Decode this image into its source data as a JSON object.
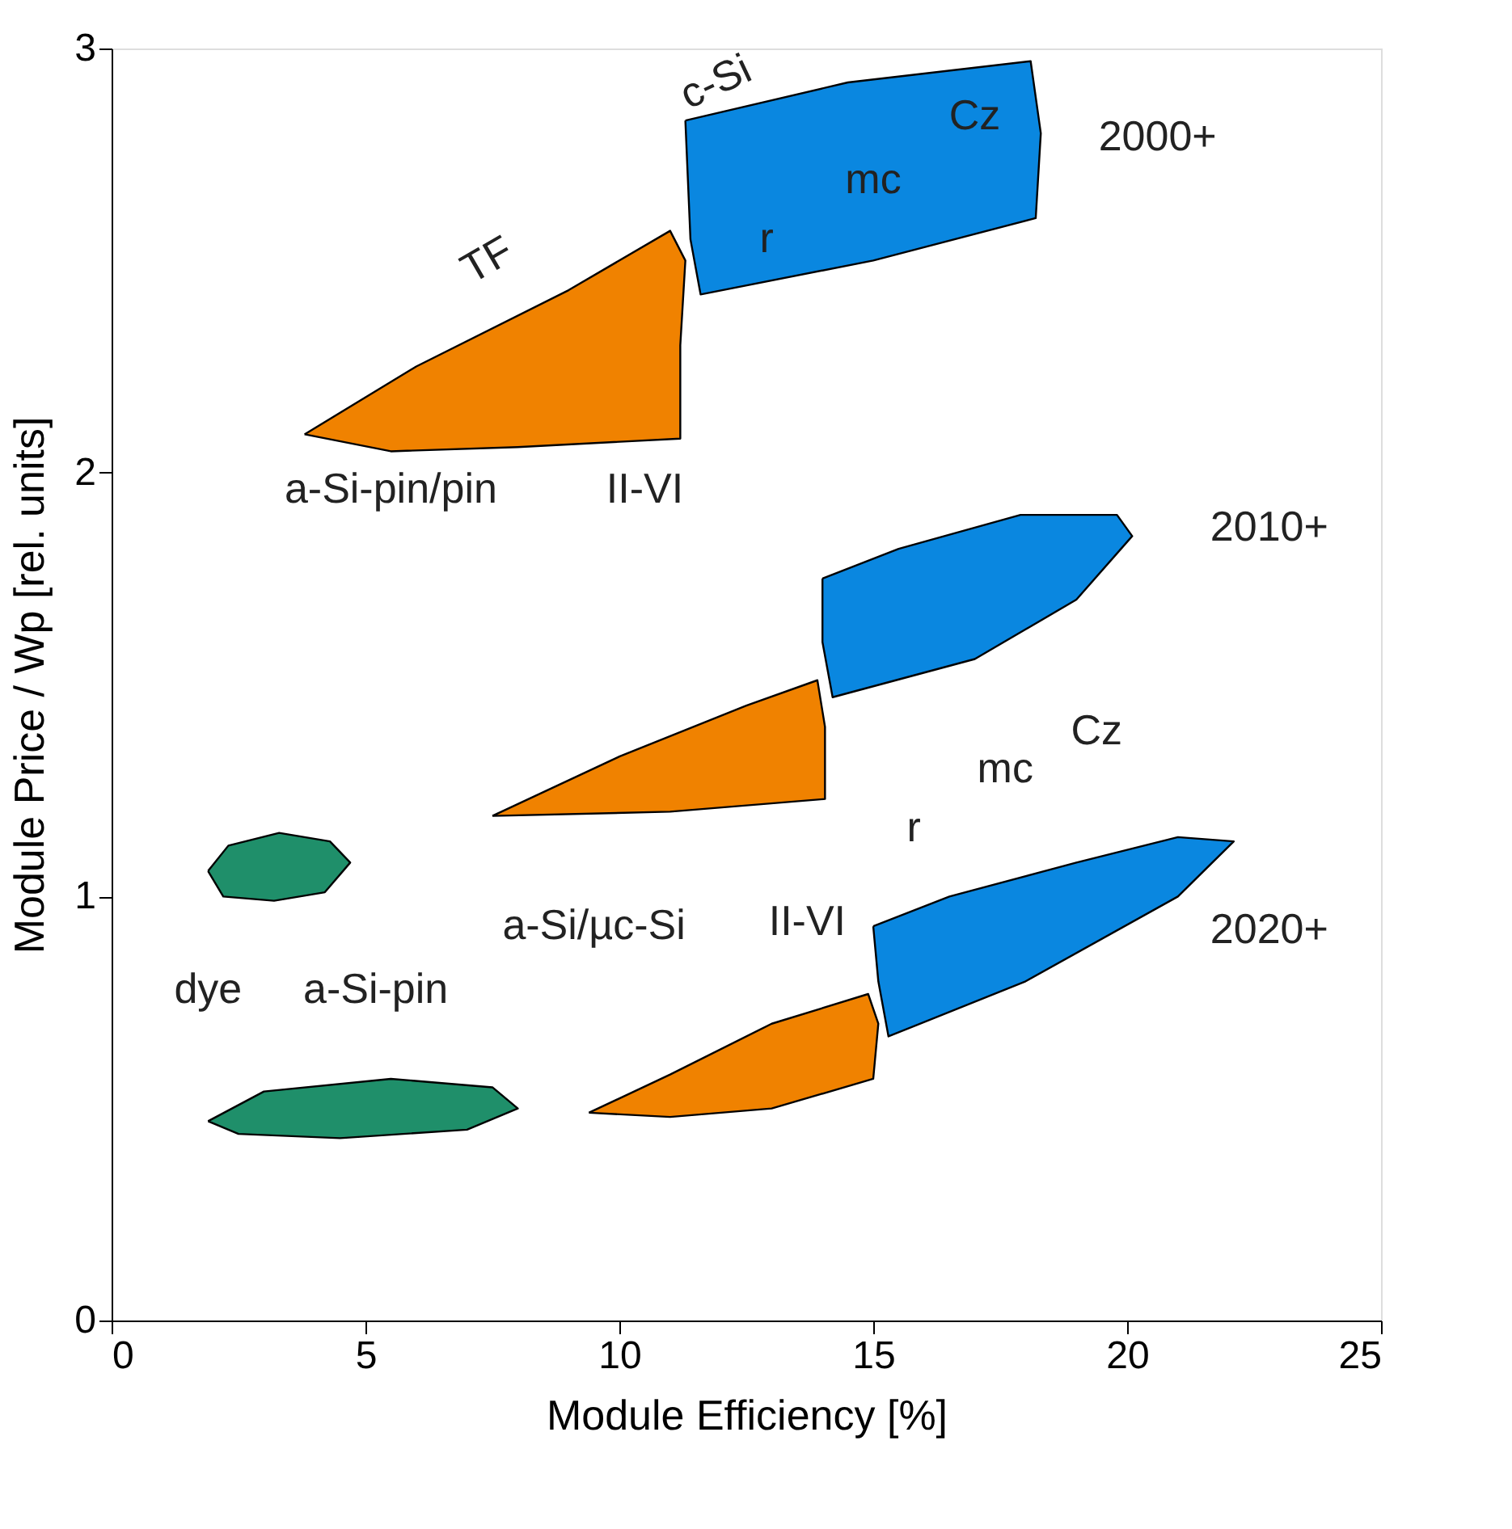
{
  "chart_data": {
    "type": "area",
    "xlabel": "Module Efficiency [%]",
    "ylabel": "Module Price / Wp [rel. units]",
    "xlim": [
      0,
      25
    ],
    "xticks": [
      0,
      5,
      10,
      15,
      20,
      25
    ],
    "ylim": [
      0,
      3
    ],
    "yticks": [
      0,
      1,
      2,
      3
    ],
    "grid": false,
    "series": [
      {
        "color": "#0a87e0",
        "x": [
          11.3,
          14.5,
          18.1,
          18.3,
          18.2,
          15,
          11.6,
          11.4,
          11.3
        ],
        "values": [
          2.83,
          2.92,
          2.97,
          2.8,
          2.6,
          2.5,
          2.42,
          2.55,
          2.83
        ]
      },
      {
        "color": "#f08200",
        "x": [
          3.8,
          6,
          9,
          11.0,
          11.3,
          11.2,
          11.2,
          8,
          5.5,
          3.8
        ],
        "values": [
          2.09,
          2.25,
          2.43,
          2.57,
          2.5,
          2.3,
          2.08,
          2.06,
          2.05,
          2.09
        ]
      },
      {
        "color": "#0a87e0",
        "x": [
          14,
          15.5,
          17.9,
          19.8,
          20.1,
          19,
          17,
          14.2,
          14,
          14
        ],
        "values": [
          1.75,
          1.82,
          1.9,
          1.9,
          1.85,
          1.7,
          1.56,
          1.47,
          1.6,
          1.75
        ]
      },
      {
        "color": "#f08200",
        "x": [
          7.5,
          10,
          12.5,
          13.9,
          14.05,
          14.05,
          11,
          7.5
        ],
        "values": [
          1.19,
          1.33,
          1.45,
          1.51,
          1.4,
          1.23,
          1.2,
          1.19
        ]
      },
      {
        "color": "#0a87e0",
        "x": [
          15,
          16.5,
          19,
          21,
          22.1,
          21,
          18,
          15.3,
          15.1,
          15
        ],
        "values": [
          0.93,
          1.0,
          1.08,
          1.14,
          1.13,
          1.0,
          0.8,
          0.67,
          0.8,
          0.93
        ]
      },
      {
        "color": "#f08200",
        "x": [
          9.4,
          11,
          13,
          14.9,
          15.1,
          15,
          13,
          11,
          9.4
        ],
        "values": [
          0.49,
          0.58,
          0.7,
          0.77,
          0.7,
          0.57,
          0.5,
          0.48,
          0.49
        ]
      },
      {
        "color": "#1f8f6a",
        "x": [
          1.9,
          2.3,
          3.3,
          4.3,
          4.7,
          4.2,
          3.2,
          2.2,
          1.9
        ],
        "values": [
          1.06,
          1.12,
          1.15,
          1.13,
          1.08,
          1.01,
          0.99,
          1.0,
          1.06
        ]
      },
      {
        "color": "#1f8f6a",
        "x": [
          1.9,
          3,
          5.5,
          7.5,
          8,
          7,
          4.5,
          2.5,
          1.9
        ],
        "values": [
          0.47,
          0.54,
          0.57,
          0.55,
          0.5,
          0.45,
          0.43,
          0.44,
          0.47
        ]
      }
    ],
    "annotations": [
      "c-Si",
      "Cz",
      "mc",
      "r",
      "2000+",
      "TF",
      "a-Si-pin/pin",
      "II-VI",
      "2010+",
      "Cz",
      "mc",
      "r",
      "a-Si/µc-Si",
      "II-VI",
      "2020+",
      "dye",
      "a-Si-pin"
    ]
  }
}
